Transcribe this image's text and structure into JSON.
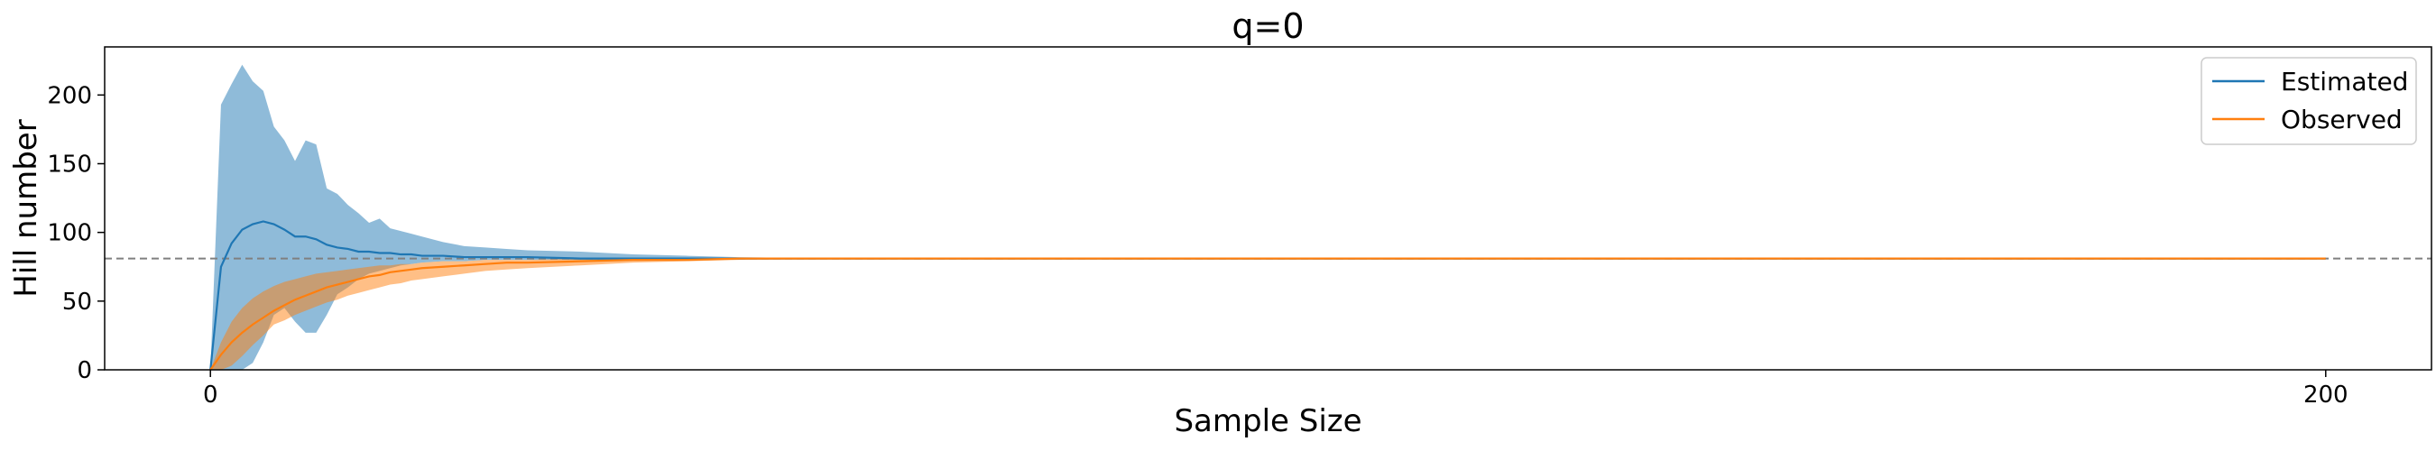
{
  "chart_data": {
    "type": "line",
    "title": "q=0",
    "xlabel": "Sample Size",
    "ylabel": "Hill number",
    "xlim": [
      -10,
      210
    ],
    "ylim": [
      0,
      235
    ],
    "xticks": [
      0,
      200
    ],
    "yticks": [
      0,
      50,
      100,
      150,
      200
    ],
    "grid": false,
    "legend": "top-right",
    "reference_line": {
      "y": 81,
      "style": "dashed",
      "color": "#808080"
    },
    "series": [
      {
        "name": "Estimated",
        "color": "#1f77b4",
        "fill_color": "#1f77b4",
        "x": [
          0,
          1,
          2,
          3,
          4,
          5,
          6,
          7,
          8,
          9,
          10,
          11,
          12,
          13,
          14,
          15,
          16,
          17,
          18,
          19,
          20,
          22,
          24,
          26,
          28,
          30,
          35,
          40,
          45,
          50,
          60,
          70,
          80,
          100,
          120,
          150,
          200
        ],
        "y": [
          0,
          75,
          92,
          102,
          106,
          108,
          106,
          102,
          97,
          97,
          95,
          91,
          89,
          88,
          86,
          86,
          85,
          85,
          84,
          84,
          83,
          83,
          82,
          82,
          82,
          82,
          81,
          81,
          81,
          81,
          81,
          81,
          81,
          81,
          81,
          81,
          81
        ],
        "lower": [
          0,
          0,
          0,
          0,
          5,
          20,
          40,
          45,
          35,
          27,
          27,
          40,
          55,
          60,
          66,
          70,
          72,
          74,
          76,
          77,
          78,
          79,
          79,
          80,
          80,
          80,
          80,
          80,
          81,
          81,
          81,
          81,
          81,
          81,
          81,
          81,
          81
        ],
        "upper": [
          0,
          193,
          208,
          222,
          210,
          203,
          177,
          167,
          152,
          167,
          164,
          132,
          128,
          120,
          114,
          107,
          110,
          103,
          101,
          99,
          97,
          93,
          90,
          89,
          88,
          87,
          86,
          84,
          83,
          82,
          81,
          81,
          81,
          81,
          81,
          81,
          81
        ]
      },
      {
        "name": "Observed",
        "color": "#ff7f0e",
        "fill_color": "#ff7f0e",
        "x": [
          0,
          1,
          2,
          3,
          4,
          5,
          6,
          7,
          8,
          9,
          10,
          11,
          12,
          13,
          14,
          15,
          16,
          17,
          18,
          19,
          20,
          22,
          24,
          26,
          28,
          30,
          35,
          40,
          45,
          50,
          60,
          70,
          80,
          100,
          120,
          150,
          200
        ],
        "y": [
          0,
          11,
          20,
          27,
          33,
          38,
          43,
          47,
          51,
          54,
          57,
          60,
          62,
          64,
          66,
          68,
          69,
          71,
          72,
          73,
          74,
          75,
          76,
          77,
          78,
          78,
          79,
          80,
          80,
          81,
          81,
          81,
          81,
          81,
          81,
          81,
          81
        ],
        "lower": [
          0,
          0,
          3,
          10,
          18,
          25,
          33,
          36,
          40,
          43,
          46,
          49,
          51,
          54,
          56,
          58,
          60,
          62,
          63,
          65,
          66,
          68,
          70,
          72,
          73,
          74,
          76,
          78,
          79,
          80,
          81,
          81,
          81,
          81,
          81,
          81,
          81
        ],
        "upper": [
          0,
          20,
          35,
          45,
          52,
          57,
          61,
          64,
          66,
          68,
          70,
          71,
          72,
          73,
          74,
          75,
          76,
          76,
          77,
          77,
          78,
          79,
          79,
          80,
          80,
          80,
          81,
          81,
          81,
          81,
          81,
          81,
          81,
          81,
          81,
          81,
          81
        ]
      }
    ]
  }
}
